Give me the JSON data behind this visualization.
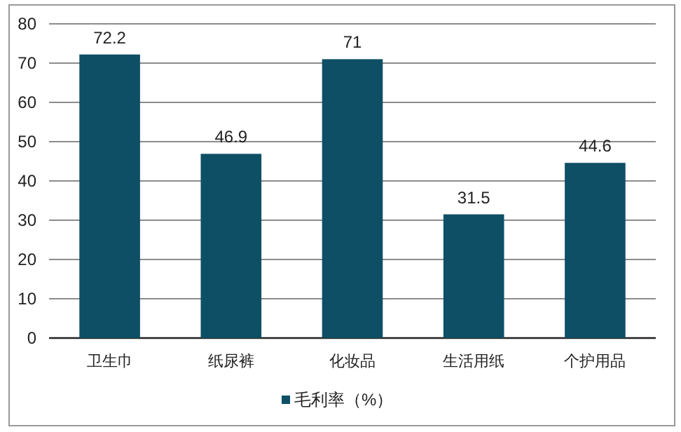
{
  "chart_data": {
    "type": "bar",
    "categories": [
      "卫生巾",
      "纸尿裤",
      "化妆品",
      "生活用纸",
      "个护用品"
    ],
    "series": [
      {
        "name": "毛利率（%）",
        "color": "#0e4f66",
        "values": [
          72.2,
          46.9,
          71,
          31.5,
          44.6
        ]
      }
    ],
    "ylim": [
      0,
      80
    ],
    "yticks": [
      0,
      10,
      20,
      30,
      40,
      50,
      60,
      70,
      80
    ],
    "grid": "y",
    "legend": "bottom",
    "data_labels": true
  }
}
